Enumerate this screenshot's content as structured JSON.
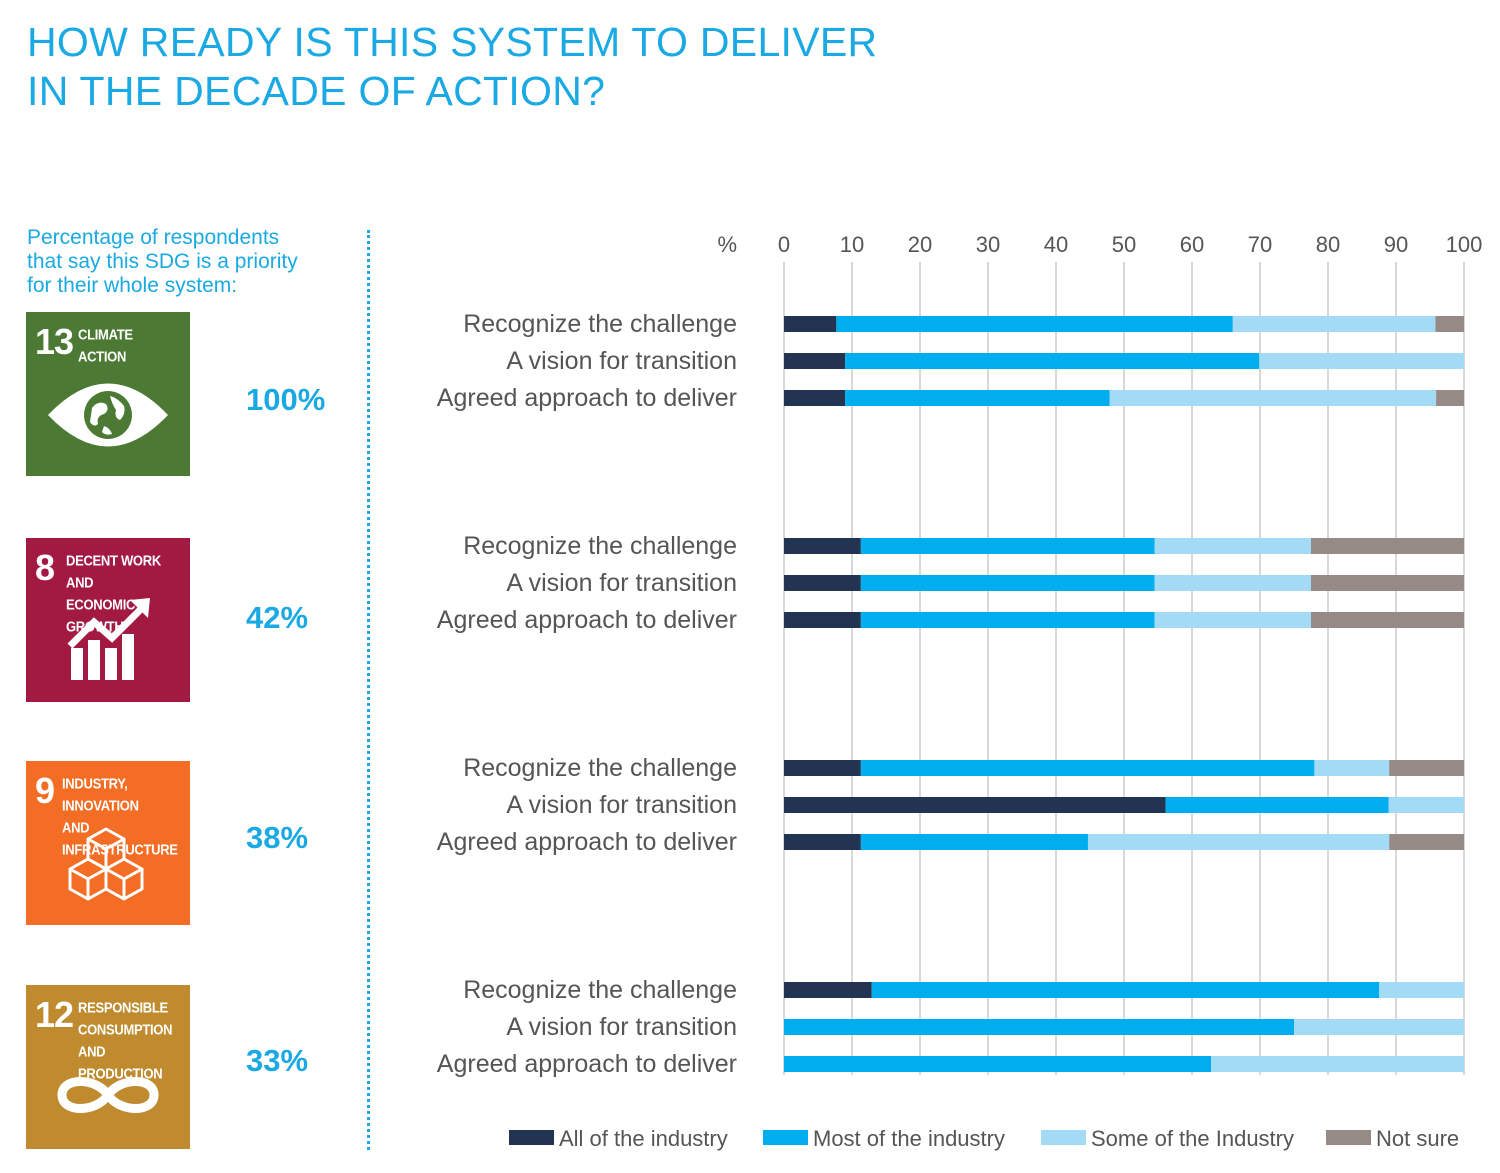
{
  "title": {
    "line1": "HOW READY IS THIS SYSTEM TO DELIVER",
    "line2": "IN THE DECADE OF ACTION?"
  },
  "intro": {
    "line1": "Percentage of respondents",
    "line2": "that say this SDG is a priority",
    "line3": "for their whole system:"
  },
  "sdgs": [
    {
      "number": "13",
      "label_lines": [
        "CLIMATE",
        "ACTION"
      ],
      "color": "#4c7a34",
      "icon": "eye-globe-icon",
      "priority": "100%"
    },
    {
      "number": "8",
      "label_lines": [
        "DECENT WORK AND",
        "ECONOMIC GROWTH"
      ],
      "color": "#a21942",
      "icon": "growth-chart-icon",
      "priority": "42%"
    },
    {
      "number": "9",
      "label_lines": [
        "INDUSTRY, INNOVATION",
        "AND INFRASTRUCTURE"
      ],
      "color": "#f36d25",
      "icon": "cubes-icon",
      "priority": "38%"
    },
    {
      "number": "12",
      "label_lines": [
        "RESPONSIBLE",
        "CONSUMPTION",
        "AND PRODUCTION"
      ],
      "color": "#bf8b2e",
      "icon": "infinity-icon",
      "priority": "33%"
    }
  ],
  "chart_data": {
    "type": "bar",
    "orientation": "horizontal",
    "stacked": true,
    "axis_unit_label": "%",
    "xlim": [
      0,
      100
    ],
    "ticks": [
      0,
      10,
      20,
      30,
      40,
      50,
      60,
      70,
      80,
      90,
      100
    ],
    "grid": true,
    "series": [
      {
        "name": "All of the industry",
        "color": "#233352"
      },
      {
        "name": "Most of the industry",
        "color": "#00aeef"
      },
      {
        "name": "Some of the Industry",
        "color": "#a3daf5"
      },
      {
        "name": "Not sure",
        "color": "#958a86"
      }
    ],
    "groups": [
      {
        "sdg": "13",
        "rows": [
          {
            "label": "Recognize the challenge",
            "values": [
              7.7,
              58.3,
              29.8,
              4.2
            ]
          },
          {
            "label": "A vision for transition",
            "values": [
              9,
              60.9,
              30.1,
              0
            ]
          },
          {
            "label": "Agreed approach to deliver",
            "values": [
              9,
              38.9,
              48,
              4.1
            ]
          }
        ]
      },
      {
        "sdg": "8",
        "rows": [
          {
            "label": "Recognize the challenge",
            "values": [
              11.3,
              43.2,
              23,
              22.5
            ]
          },
          {
            "label": "A vision for transition",
            "values": [
              11.3,
              43.2,
              23,
              22.5
            ]
          },
          {
            "label": "Agreed approach to deliver",
            "values": [
              11.3,
              43.2,
              23,
              22.5
            ]
          }
        ]
      },
      {
        "sdg": "9",
        "rows": [
          {
            "label": "Recognize the challenge",
            "values": [
              11.3,
              66.7,
              11,
              11
            ]
          },
          {
            "label": "A vision for transition",
            "values": [
              56.1,
              32.8,
              11.1,
              0
            ]
          },
          {
            "label": "Agreed approach to deliver",
            "values": [
              11.3,
              33.4,
              44.3,
              11
            ]
          }
        ]
      },
      {
        "sdg": "12",
        "rows": [
          {
            "label": "Recognize the challenge",
            "values": [
              12.9,
              74.6,
              12.5,
              0
            ]
          },
          {
            "label": "A vision for transition",
            "values": [
              0,
              75,
              25,
              0
            ]
          },
          {
            "label": "Agreed approach to deliver",
            "values": [
              0,
              62.8,
              37.2,
              0
            ]
          }
        ]
      }
    ]
  }
}
